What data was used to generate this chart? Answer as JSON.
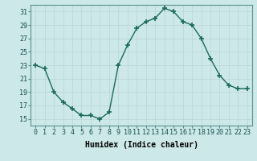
{
  "x": [
    0,
    1,
    2,
    3,
    4,
    5,
    6,
    7,
    8,
    9,
    10,
    11,
    12,
    13,
    14,
    15,
    16,
    17,
    18,
    19,
    20,
    21,
    22,
    23
  ],
  "y": [
    23,
    22.5,
    19,
    17.5,
    16.5,
    15.5,
    15.5,
    15,
    16,
    23,
    26,
    28.5,
    29.5,
    30,
    31.5,
    31,
    29.5,
    29,
    27,
    24,
    21.5,
    20,
    19.5,
    19.5
  ],
  "xlabel": "Humidex (Indice chaleur)",
  "ylim": [
    14,
    32
  ],
  "xlim": [
    -0.5,
    23.5
  ],
  "yticks": [
    15,
    17,
    19,
    21,
    23,
    25,
    27,
    29,
    31
  ],
  "xticks": [
    0,
    1,
    2,
    3,
    4,
    5,
    6,
    7,
    8,
    9,
    10,
    11,
    12,
    13,
    14,
    15,
    16,
    17,
    18,
    19,
    20,
    21,
    22,
    23
  ],
  "line_color": "#1a6b5a",
  "marker": "+",
  "marker_size": 4,
  "background_color": "#cce8e8",
  "grid_color": "#b8d4d4",
  "line_width": 1.0,
  "xlabel_fontsize": 7,
  "tick_fontsize": 6
}
